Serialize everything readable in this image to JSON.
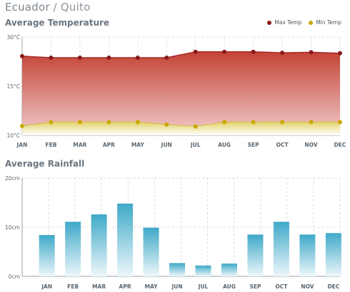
{
  "header": {
    "country": "Ecuador",
    "separator": " / ",
    "city": "Quito"
  },
  "temperature_title": "Average Temperature",
  "rainfall_title": "Average Rainfall",
  "legend": {
    "max_label": "Max Temp",
    "max_color": "#8b1a1a",
    "min_label": "Min Temp",
    "min_color": "#c9a800"
  },
  "chart_data": [
    {
      "type": "area",
      "title": "Average Temperature",
      "categories": [
        "JAN",
        "FEB",
        "MAR",
        "APR",
        "MAY",
        "JUN",
        "JUL",
        "AUG",
        "SEP",
        "OCT",
        "NOV",
        "DEC"
      ],
      "series": [
        {
          "name": "Max Temp",
          "values": [
            26.1,
            25.8,
            25.8,
            25.8,
            25.8,
            25.8,
            27.0,
            27.0,
            27.0,
            26.8,
            26.9,
            26.7
          ]
        },
        {
          "name": "Min Temp",
          "values": [
            11.9,
            12.7,
            12.7,
            12.7,
            12.7,
            12.2,
            11.8,
            12.7,
            12.7,
            12.7,
            12.7,
            12.7
          ]
        }
      ],
      "yticks": [
        "30°C",
        "15°C",
        "10°C"
      ],
      "ylim": [
        10,
        30
      ],
      "grid": true
    },
    {
      "type": "bar",
      "title": "Average Rainfall",
      "categories": [
        "JAN",
        "FEB",
        "MAR",
        "APR",
        "MAY",
        "JUN",
        "JUL",
        "AUG",
        "SEP",
        "OCT",
        "NOV",
        "DEC"
      ],
      "values": [
        8.4,
        11.1,
        12.6,
        14.8,
        9.9,
        2.7,
        2.2,
        2.6,
        8.5,
        11.1,
        8.5,
        8.8
      ],
      "yticks": [
        "20cm",
        "10cm",
        "0cm"
      ],
      "ylim": [
        0,
        20
      ],
      "grid": true
    }
  ]
}
